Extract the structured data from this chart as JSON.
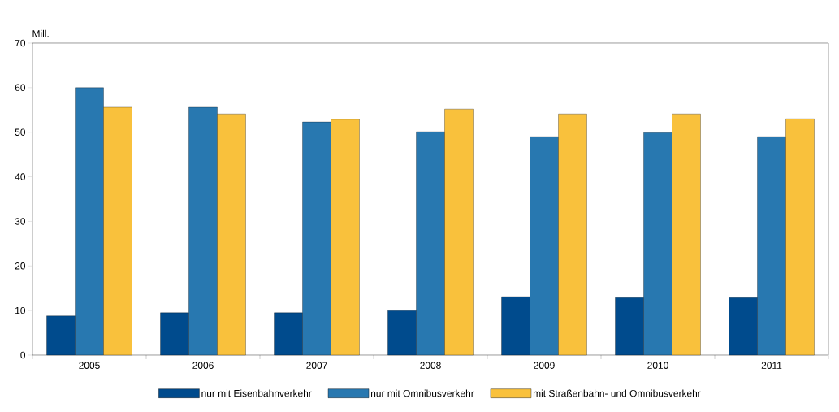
{
  "chart_data": {
    "type": "bar",
    "ylabel": "Mill.",
    "categories": [
      "2005",
      "2006",
      "2007",
      "2008",
      "2009",
      "2010",
      "2011"
    ],
    "series": [
      {
        "name": "nur mit Eisenbahnverkehr",
        "color": "#004b8d",
        "values": [
          8.8,
          9.5,
          9.5,
          10.0,
          13.1,
          12.9,
          12.9
        ]
      },
      {
        "name": "nur mit Omnibusverkehr",
        "color": "#2878b0",
        "values": [
          60.0,
          55.6,
          52.3,
          50.1,
          49.0,
          49.9,
          49.0
        ]
      },
      {
        "name": "mit Straßenbahn- und Omnibusverkehr",
        "color": "#f9c13c",
        "values": [
          55.6,
          54.1,
          52.9,
          55.2,
          54.1,
          54.1,
          53.0
        ]
      }
    ],
    "ylim": [
      0,
      70
    ],
    "yticks": [
      0,
      10,
      20,
      30,
      40,
      50,
      60,
      70
    ],
    "grid": false,
    "legend": "bottom"
  }
}
